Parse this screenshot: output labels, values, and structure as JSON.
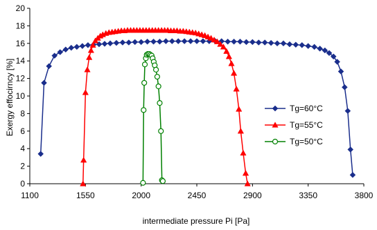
{
  "chart_data": {
    "type": "line",
    "title": "",
    "xlabel": "intermediate pressure Pi [Pa]",
    "ylabel": "Exergy effocirncy  [%]",
    "xlim": [
      1100,
      3800
    ],
    "ylim": [
      0,
      20
    ],
    "xticks": [
      1100,
      1550,
      2000,
      2450,
      2900,
      3350,
      3800
    ],
    "yticks": [
      0,
      2,
      4,
      6,
      8,
      10,
      12,
      14,
      16,
      18,
      20
    ],
    "grid": false,
    "legend_position": "right",
    "series": [
      {
        "name": "Tg=60°C",
        "color": "#1a2e8c",
        "marker": "diamond",
        "x": [
          1188,
          1215,
          1255,
          1300,
          1345,
          1390,
          1435,
          1480,
          1525,
          1570,
          1615,
          1660,
          1705,
          1750,
          1800,
          1850,
          1900,
          1950,
          2000,
          2050,
          2100,
          2150,
          2200,
          2250,
          2300,
          2350,
          2400,
          2450,
          2500,
          2550,
          2600,
          2650,
          2700,
          2750,
          2800,
          2850,
          2900,
          2950,
          3000,
          3050,
          3100,
          3150,
          3200,
          3250,
          3300,
          3350,
          3400,
          3445,
          3485,
          3520,
          3555,
          3585,
          3615,
          3645,
          3670,
          3692,
          3710
        ],
        "y": [
          3.4,
          11.5,
          13.4,
          14.6,
          15.0,
          15.3,
          15.5,
          15.6,
          15.7,
          15.8,
          15.85,
          15.9,
          15.95,
          16.0,
          16.05,
          16.1,
          16.1,
          16.15,
          16.15,
          16.2,
          16.2,
          16.2,
          16.25,
          16.25,
          16.25,
          16.25,
          16.25,
          16.25,
          16.25,
          16.25,
          16.25,
          16.25,
          16.2,
          16.2,
          16.2,
          16.15,
          16.15,
          16.1,
          16.1,
          16.05,
          16.0,
          16.0,
          15.9,
          15.85,
          15.8,
          15.7,
          15.6,
          15.4,
          15.2,
          14.9,
          14.5,
          13.9,
          12.8,
          11.0,
          8.3,
          3.9,
          1.0
        ]
      },
      {
        "name": "Tg=55°C",
        "color": "#ff0000",
        "marker": "triangle",
        "x": [
          1530,
          1535,
          1550,
          1565,
          1580,
          1595,
          1610,
          1630,
          1650,
          1670,
          1690,
          1715,
          1740,
          1765,
          1790,
          1815,
          1840,
          1865,
          1890,
          1915,
          1940,
          1965,
          1990,
          2015,
          2040,
          2065,
          2090,
          2115,
          2140,
          2165,
          2190,
          2215,
          2240,
          2265,
          2290,
          2315,
          2340,
          2365,
          2390,
          2415,
          2440,
          2465,
          2490,
          2515,
          2540,
          2565,
          2590,
          2615,
          2640,
          2665,
          2690,
          2710,
          2730,
          2750,
          2770,
          2790,
          2805,
          2825,
          2845,
          2860
        ],
        "y": [
          0,
          2.7,
          10.4,
          13.0,
          14.4,
          15.2,
          15.8,
          16.3,
          16.6,
          16.85,
          17.0,
          17.15,
          17.25,
          17.3,
          17.35,
          17.4,
          17.45,
          17.45,
          17.5,
          17.5,
          17.5,
          17.5,
          17.5,
          17.5,
          17.5,
          17.5,
          17.5,
          17.5,
          17.5,
          17.5,
          17.5,
          17.5,
          17.45,
          17.45,
          17.45,
          17.4,
          17.4,
          17.35,
          17.3,
          17.25,
          17.2,
          17.1,
          17.0,
          16.9,
          16.75,
          16.6,
          16.4,
          16.2,
          15.9,
          15.6,
          15.1,
          14.5,
          13.7,
          12.6,
          10.8,
          8.5,
          6.0,
          3.5,
          1.2,
          0
        ]
      },
      {
        "name": "Tg=50°C",
        "color": "#008000",
        "marker": "circle",
        "x": [
          2015,
          2020,
          2025,
          2030,
          2038,
          2045,
          2055,
          2065,
          2075,
          2085,
          2093,
          2102,
          2110,
          2120,
          2130,
          2140,
          2150,
          2160,
          2168,
          2175
        ],
        "y": [
          0.1,
          8.4,
          11.5,
          13.6,
          14.3,
          14.7,
          14.8,
          14.8,
          14.7,
          14.6,
          14.3,
          13.9,
          13.5,
          13.0,
          12.2,
          11.1,
          9.2,
          6.0,
          0.4,
          0.3
        ]
      }
    ]
  }
}
